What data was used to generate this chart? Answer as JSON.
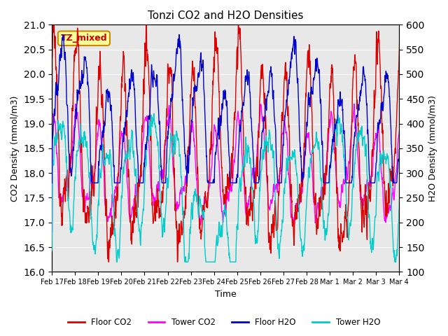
{
  "title": "Tonzi CO2 and H2O Densities",
  "xlabel": "Time",
  "ylabel_left": "CO2 Density (mmol/m3)",
  "ylabel_right": "H2O Density (mmol/m3)",
  "ylim_left": [
    16.0,
    21.0
  ],
  "ylim_right": [
    100,
    600
  ],
  "annotation_text": "TZ_mixed",
  "annotation_color": "#cc0000",
  "annotation_bg": "#ffff99",
  "annotation_border": "#cc8800",
  "colors": {
    "floor_co2": "#dd0000",
    "tower_co2": "#ff00ff",
    "floor_h2o": "#0000cc",
    "tower_h2o": "#00cccc"
  },
  "legend_labels": [
    "Floor CO2",
    "Tower CO2",
    "Floor H2O",
    "Tower H2O"
  ],
  "xtick_labels": [
    "Feb 17",
    "Feb 18",
    "Feb 19",
    "Feb 20",
    "Feb 21",
    "Feb 22",
    "Feb 23",
    "Feb 24",
    "Feb 25",
    "Feb 26",
    "Feb 27",
    "Feb 28",
    "Mar 1",
    "Mar 2",
    "Mar 3",
    "Mar 4"
  ],
  "background_color": "#e8e8e8",
  "grid_color": "#ffffff",
  "fig_bg": "#ffffff",
  "linewidth": 1.0,
  "yticks_left_min": 16.0,
  "yticks_left_max": 21.0,
  "yticks_left_step": 0.5,
  "yticks_right_min": 100,
  "yticks_right_max": 600,
  "yticks_right_step": 50
}
